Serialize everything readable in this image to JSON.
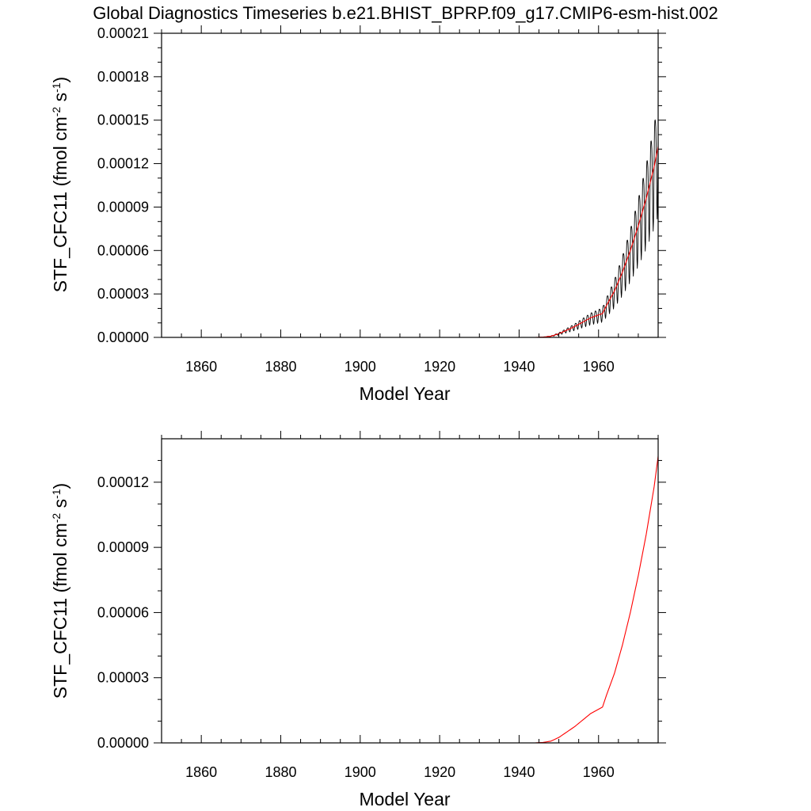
{
  "title": "Global Diagnostics Timeseries b.e21.BHIST_BPRP.f09_g17.CMIP6-esm-hist.002",
  "chart_data": [
    {
      "type": "line",
      "xlabel": "Model Year",
      "ylabel_main": "STF_CFC11 (fmol cm",
      "ylabel_sup1": "-2",
      "ylabel_mid": " s",
      "ylabel_sup2": "-1",
      "ylabel_end": ")",
      "xlim": [
        1850,
        1975
      ],
      "ylim": [
        0,
        0.00021
      ],
      "xticks": [
        1860,
        1880,
        1900,
        1920,
        1940,
        1960
      ],
      "yticks": [
        0,
        3e-05,
        6e-05,
        9e-05,
        0.00012,
        0.00015,
        0.00018,
        0.00021
      ],
      "ytick_labels": [
        "0.00000",
        "0.00003",
        "0.00006",
        "0.00009",
        "0.00012",
        "0.00015",
        "0.00018",
        "0.00021"
      ],
      "series": [
        {
          "kind": "monthly",
          "color": "#000000",
          "seasonal_amplitude_ratio": 0.3,
          "x": [
            1850,
            1944,
            1946,
            1948,
            1950,
            1952,
            1954,
            1956,
            1958,
            1960,
            1961,
            1962,
            1964,
            1966,
            1968,
            1970,
            1972,
            1974,
            1975
          ],
          "y": [
            0,
            0,
            2e-07,
            8e-07,
            2.5e-06,
            5e-06,
            7.5e-06,
            1.05e-05,
            1.35e-05,
            1.55e-05,
            1.65e-05,
            2.2e-05,
            3.2e-05,
            4.5e-05,
            6e-05,
            7.7e-05,
            9.6e-05,
            0.000118,
            0.000132
          ]
        },
        {
          "kind": "annual",
          "color": "#ff0000",
          "x": [
            1850,
            1944,
            1946,
            1948,
            1950,
            1952,
            1954,
            1956,
            1958,
            1960,
            1961,
            1962,
            1964,
            1966,
            1968,
            1970,
            1972,
            1974,
            1975
          ],
          "y": [
            0,
            0,
            2e-07,
            8e-07,
            2.5e-06,
            5e-06,
            7.5e-06,
            1.05e-05,
            1.35e-05,
            1.55e-05,
            1.65e-05,
            2.2e-05,
            3.2e-05,
            4.5e-05,
            6e-05,
            7.7e-05,
            9.6e-05,
            0.000118,
            0.000132
          ]
        }
      ]
    },
    {
      "type": "line",
      "xlabel": "Model Year",
      "ylabel_main": "STF_CFC11 (fmol cm",
      "ylabel_sup1": "-2",
      "ylabel_mid": " s",
      "ylabel_sup2": "-1",
      "ylabel_end": ")",
      "xlim": [
        1850,
        1975
      ],
      "ylim": [
        0,
        0.00014
      ],
      "xticks": [
        1860,
        1880,
        1900,
        1920,
        1940,
        1960
      ],
      "yticks": [
        0,
        3e-05,
        6e-05,
        9e-05,
        0.00012
      ],
      "ytick_labels": [
        "0.00000",
        "0.00003",
        "0.00006",
        "0.00009",
        "0.00012"
      ],
      "series": [
        {
          "kind": "annual",
          "color": "#ff0000",
          "x": [
            1850,
            1944,
            1946,
            1948,
            1950,
            1952,
            1954,
            1956,
            1958,
            1960,
            1961,
            1962,
            1964,
            1966,
            1968,
            1970,
            1972,
            1974,
            1975
          ],
          "y": [
            0,
            0,
            2e-07,
            8e-07,
            2.5e-06,
            5e-06,
            7.5e-06,
            1.05e-05,
            1.35e-05,
            1.55e-05,
            1.65e-05,
            2.2e-05,
            3.2e-05,
            4.5e-05,
            6e-05,
            7.7e-05,
            9.6e-05,
            0.000118,
            0.000132
          ]
        }
      ]
    }
  ]
}
